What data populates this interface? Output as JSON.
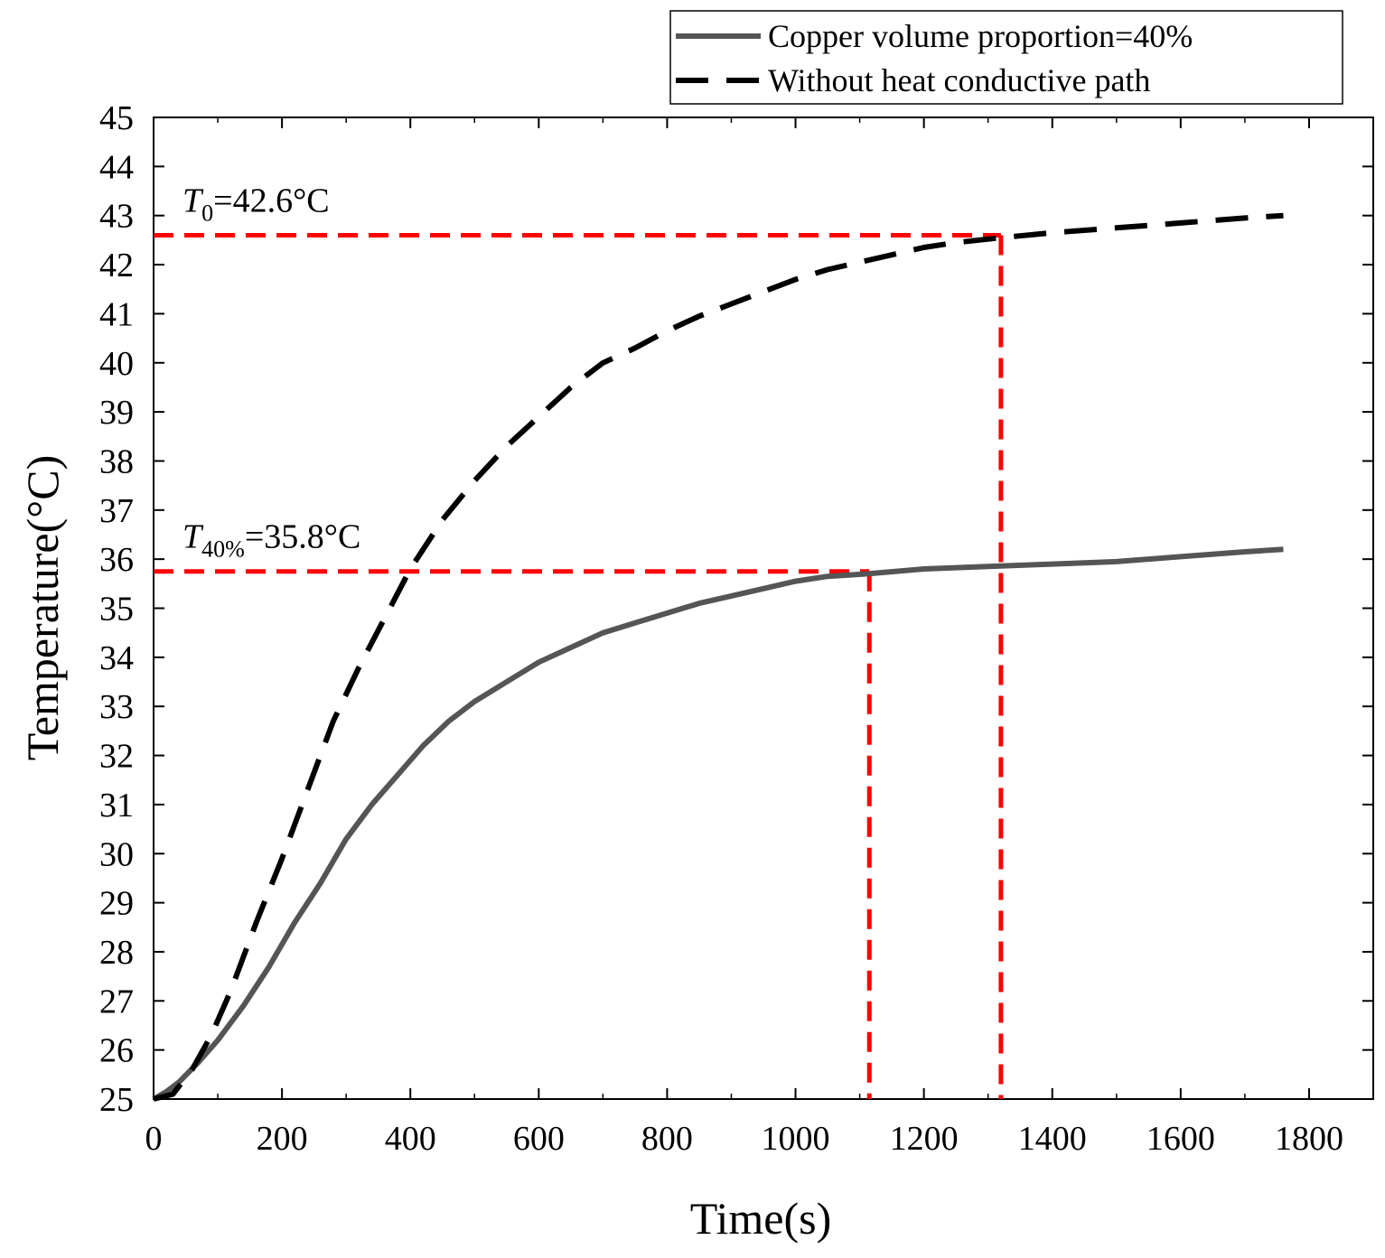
{
  "chart_data": {
    "type": "line",
    "title": "",
    "xlabel": "Time(s)",
    "ylabel": "Temperature(°C)",
    "xlim": [
      0,
      1900
    ],
    "ylim": [
      25,
      45
    ],
    "x_ticks": [
      "0",
      "200",
      "400",
      "600",
      "800",
      "1000",
      "1200",
      "1400",
      "1600",
      "1800"
    ],
    "y_ticks": [
      "25",
      "26",
      "27",
      "28",
      "29",
      "30",
      "31",
      "32",
      "33",
      "34",
      "35",
      "36",
      "37",
      "38",
      "39",
      "40",
      "41",
      "42",
      "43",
      "44",
      "45"
    ],
    "legend_position": "top-right",
    "series": [
      {
        "name": "Copper volume proportion=40%",
        "style": "solid",
        "color": "#555555",
        "points": [
          [
            0,
            25.0
          ],
          [
            20,
            25.15
          ],
          [
            40,
            25.35
          ],
          [
            70,
            25.75
          ],
          [
            100,
            26.2
          ],
          [
            140,
            26.9
          ],
          [
            180,
            27.7
          ],
          [
            220,
            28.6
          ],
          [
            260,
            29.4
          ],
          [
            300,
            30.3
          ],
          [
            340,
            31.0
          ],
          [
            380,
            31.6
          ],
          [
            420,
            32.2
          ],
          [
            460,
            32.7
          ],
          [
            500,
            33.1
          ],
          [
            550,
            33.5
          ],
          [
            600,
            33.9
          ],
          [
            650,
            34.2
          ],
          [
            700,
            34.5
          ],
          [
            750,
            34.7
          ],
          [
            800,
            34.9
          ],
          [
            850,
            35.1
          ],
          [
            900,
            35.25
          ],
          [
            950,
            35.4
          ],
          [
            1000,
            35.55
          ],
          [
            1050,
            35.65
          ],
          [
            1110,
            35.7
          ],
          [
            1200,
            35.8
          ],
          [
            1300,
            35.85
          ],
          [
            1400,
            35.9
          ],
          [
            1500,
            35.95
          ],
          [
            1600,
            36.05
          ],
          [
            1700,
            36.15
          ],
          [
            1760,
            36.2
          ]
        ]
      },
      {
        "name": "Without heat conductive path",
        "style": "dashed",
        "color": "#000000",
        "points": [
          [
            0,
            25.0
          ],
          [
            30,
            25.1
          ],
          [
            60,
            25.6
          ],
          [
            90,
            26.3
          ],
          [
            120,
            27.2
          ],
          [
            160,
            28.6
          ],
          [
            200,
            29.9
          ],
          [
            240,
            31.3
          ],
          [
            280,
            32.7
          ],
          [
            320,
            33.8
          ],
          [
            360,
            34.8
          ],
          [
            400,
            35.8
          ],
          [
            450,
            36.8
          ],
          [
            500,
            37.6
          ],
          [
            550,
            38.3
          ],
          [
            600,
            38.9
          ],
          [
            650,
            39.5
          ],
          [
            700,
            40.0
          ],
          [
            750,
            40.3
          ],
          [
            800,
            40.65
          ],
          [
            850,
            40.95
          ],
          [
            900,
            41.2
          ],
          [
            950,
            41.45
          ],
          [
            1000,
            41.7
          ],
          [
            1050,
            41.9
          ],
          [
            1100,
            42.05
          ],
          [
            1150,
            42.2
          ],
          [
            1200,
            42.35
          ],
          [
            1250,
            42.45
          ],
          [
            1320,
            42.55
          ],
          [
            1400,
            42.65
          ],
          [
            1500,
            42.75
          ],
          [
            1600,
            42.85
          ],
          [
            1700,
            42.95
          ],
          [
            1760,
            43.0
          ]
        ]
      }
    ],
    "reference_lines": [
      {
        "value": 42.6,
        "x_end": 1320,
        "label_var": "T",
        "label_sub": "0",
        "label_rest": "=42.6°C"
      },
      {
        "value": 35.75,
        "x_end": 1115,
        "label_var": "T",
        "label_sub": "40%",
        "label_rest": "=35.8°C"
      }
    ],
    "reference_color": "#ff0000"
  }
}
